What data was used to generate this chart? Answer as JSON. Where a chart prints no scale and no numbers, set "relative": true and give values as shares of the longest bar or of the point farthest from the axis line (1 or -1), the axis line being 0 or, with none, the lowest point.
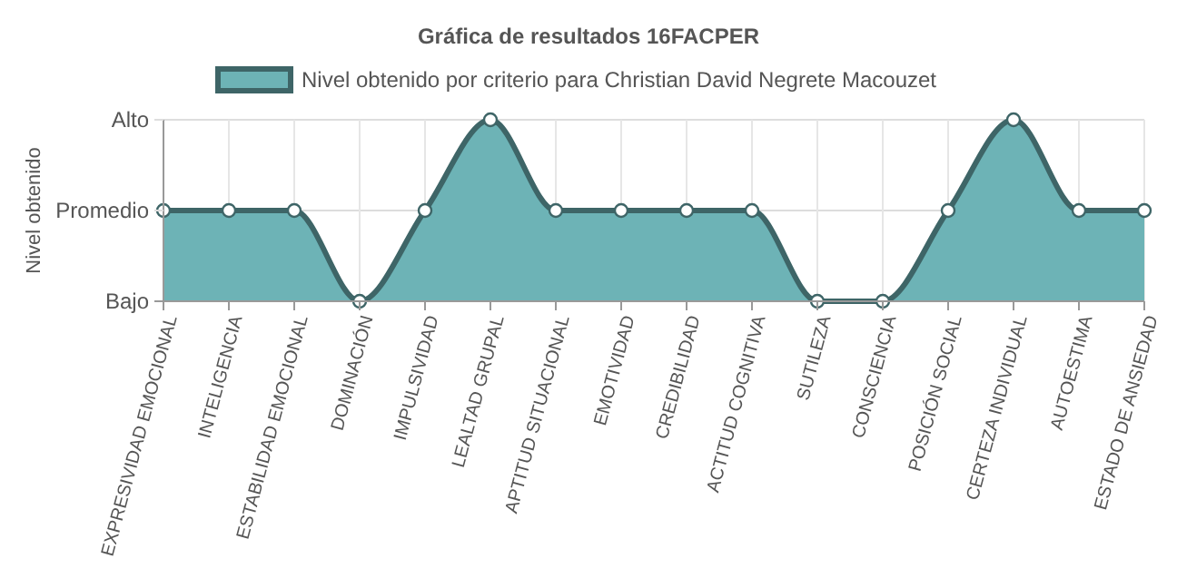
{
  "chart_data": {
    "type": "area",
    "title": "Gráfica de resultados 16FACPER",
    "ylabel": "Nivel obtenido",
    "categories": [
      "EXPRESIVIDAD EMOCIONAL",
      "INTELIGENCIA",
      "ESTABILIDAD EMOCIONAL",
      "DOMINACIÓN",
      "IMPULSIVIDAD",
      "LEALTAD GRUPAL",
      "APTITUD SITUACIONAL",
      "EMOTIVIDAD",
      "CREDIBILIDAD",
      "ACTITUD COGNITIVA",
      "SUTILEZA",
      "CONSCIENCIA",
      "POSICIÓN SOCIAL",
      "CERTEZA INDIVIDUAL",
      "AUTOESTIMA",
      "ESTADO DE ANSIEDAD"
    ],
    "series": [
      {
        "name": "Nivel obtenido por criterio para Christian David Negrete Macouzet",
        "color": "#6db3b6",
        "values": [
          0.5,
          0.5,
          0.5,
          0,
          0.5,
          1,
          0.5,
          0.5,
          0.5,
          0.5,
          0,
          0,
          0.5,
          1,
          0.5,
          0.5
        ]
      }
    ],
    "relative": true,
    "annotations": [
      "Bajo"
    ],
    "ref_lines": [
      {
        "axis": "y",
        "value": 0.5,
        "label": "Promedio",
        "color": "#dddddd"
      },
      {
        "axis": "y",
        "value": 1,
        "label": "Alto",
        "color": "#dddddd"
      }
    ],
    "grid": "x",
    "legend": "top",
    "marker": "circle",
    "line_style": "solid"
  }
}
